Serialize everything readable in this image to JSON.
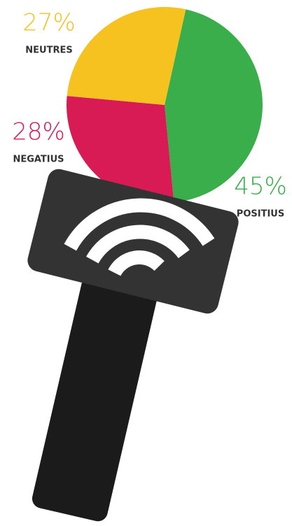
{
  "chart_data": {
    "type": "pie",
    "categories": [
      "POSITIUS",
      "NEGATIUS",
      "NEUTRES"
    ],
    "values": [
      45,
      28,
      27
    ],
    "value_labels": [
      "45%",
      "28%",
      "27%"
    ],
    "colors": [
      "#3aae4a",
      "#d81b55",
      "#f5c21f"
    ]
  }
}
